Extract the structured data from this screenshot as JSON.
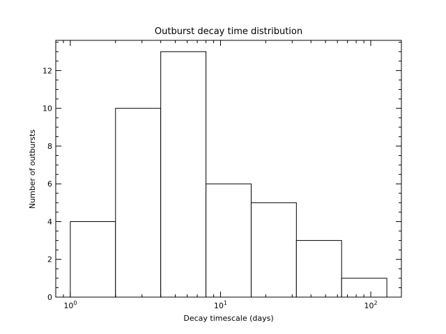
{
  "chart_data": {
    "type": "bar",
    "title": "Outburst decay time distribution",
    "xlabel": "Decay timescale (days)",
    "ylabel": "Number of outbursts",
    "x_scale": "log",
    "xlim": [
      0.8,
      160
    ],
    "ylim": [
      0,
      13.6
    ],
    "bin_edges": [
      1,
      2,
      4,
      8,
      16,
      32,
      64,
      128
    ],
    "values": [
      4,
      10,
      13,
      6,
      5,
      3,
      1
    ],
    "y_ticks": [
      0,
      2,
      4,
      6,
      8,
      10,
      12
    ],
    "y_tick_labels": [
      "0",
      "2",
      "4",
      "6",
      "8",
      "10",
      "12"
    ],
    "x_major_ticks": [
      1,
      10,
      100
    ],
    "x_major_tick_labels": [
      {
        "base": "10",
        "exp": "0"
      },
      {
        "base": "10",
        "exp": "1"
      },
      {
        "base": "10",
        "exp": "2"
      }
    ],
    "grid": false,
    "legend": "none",
    "bar_fill": "#ffffff",
    "bar_stroke": "#000000"
  }
}
